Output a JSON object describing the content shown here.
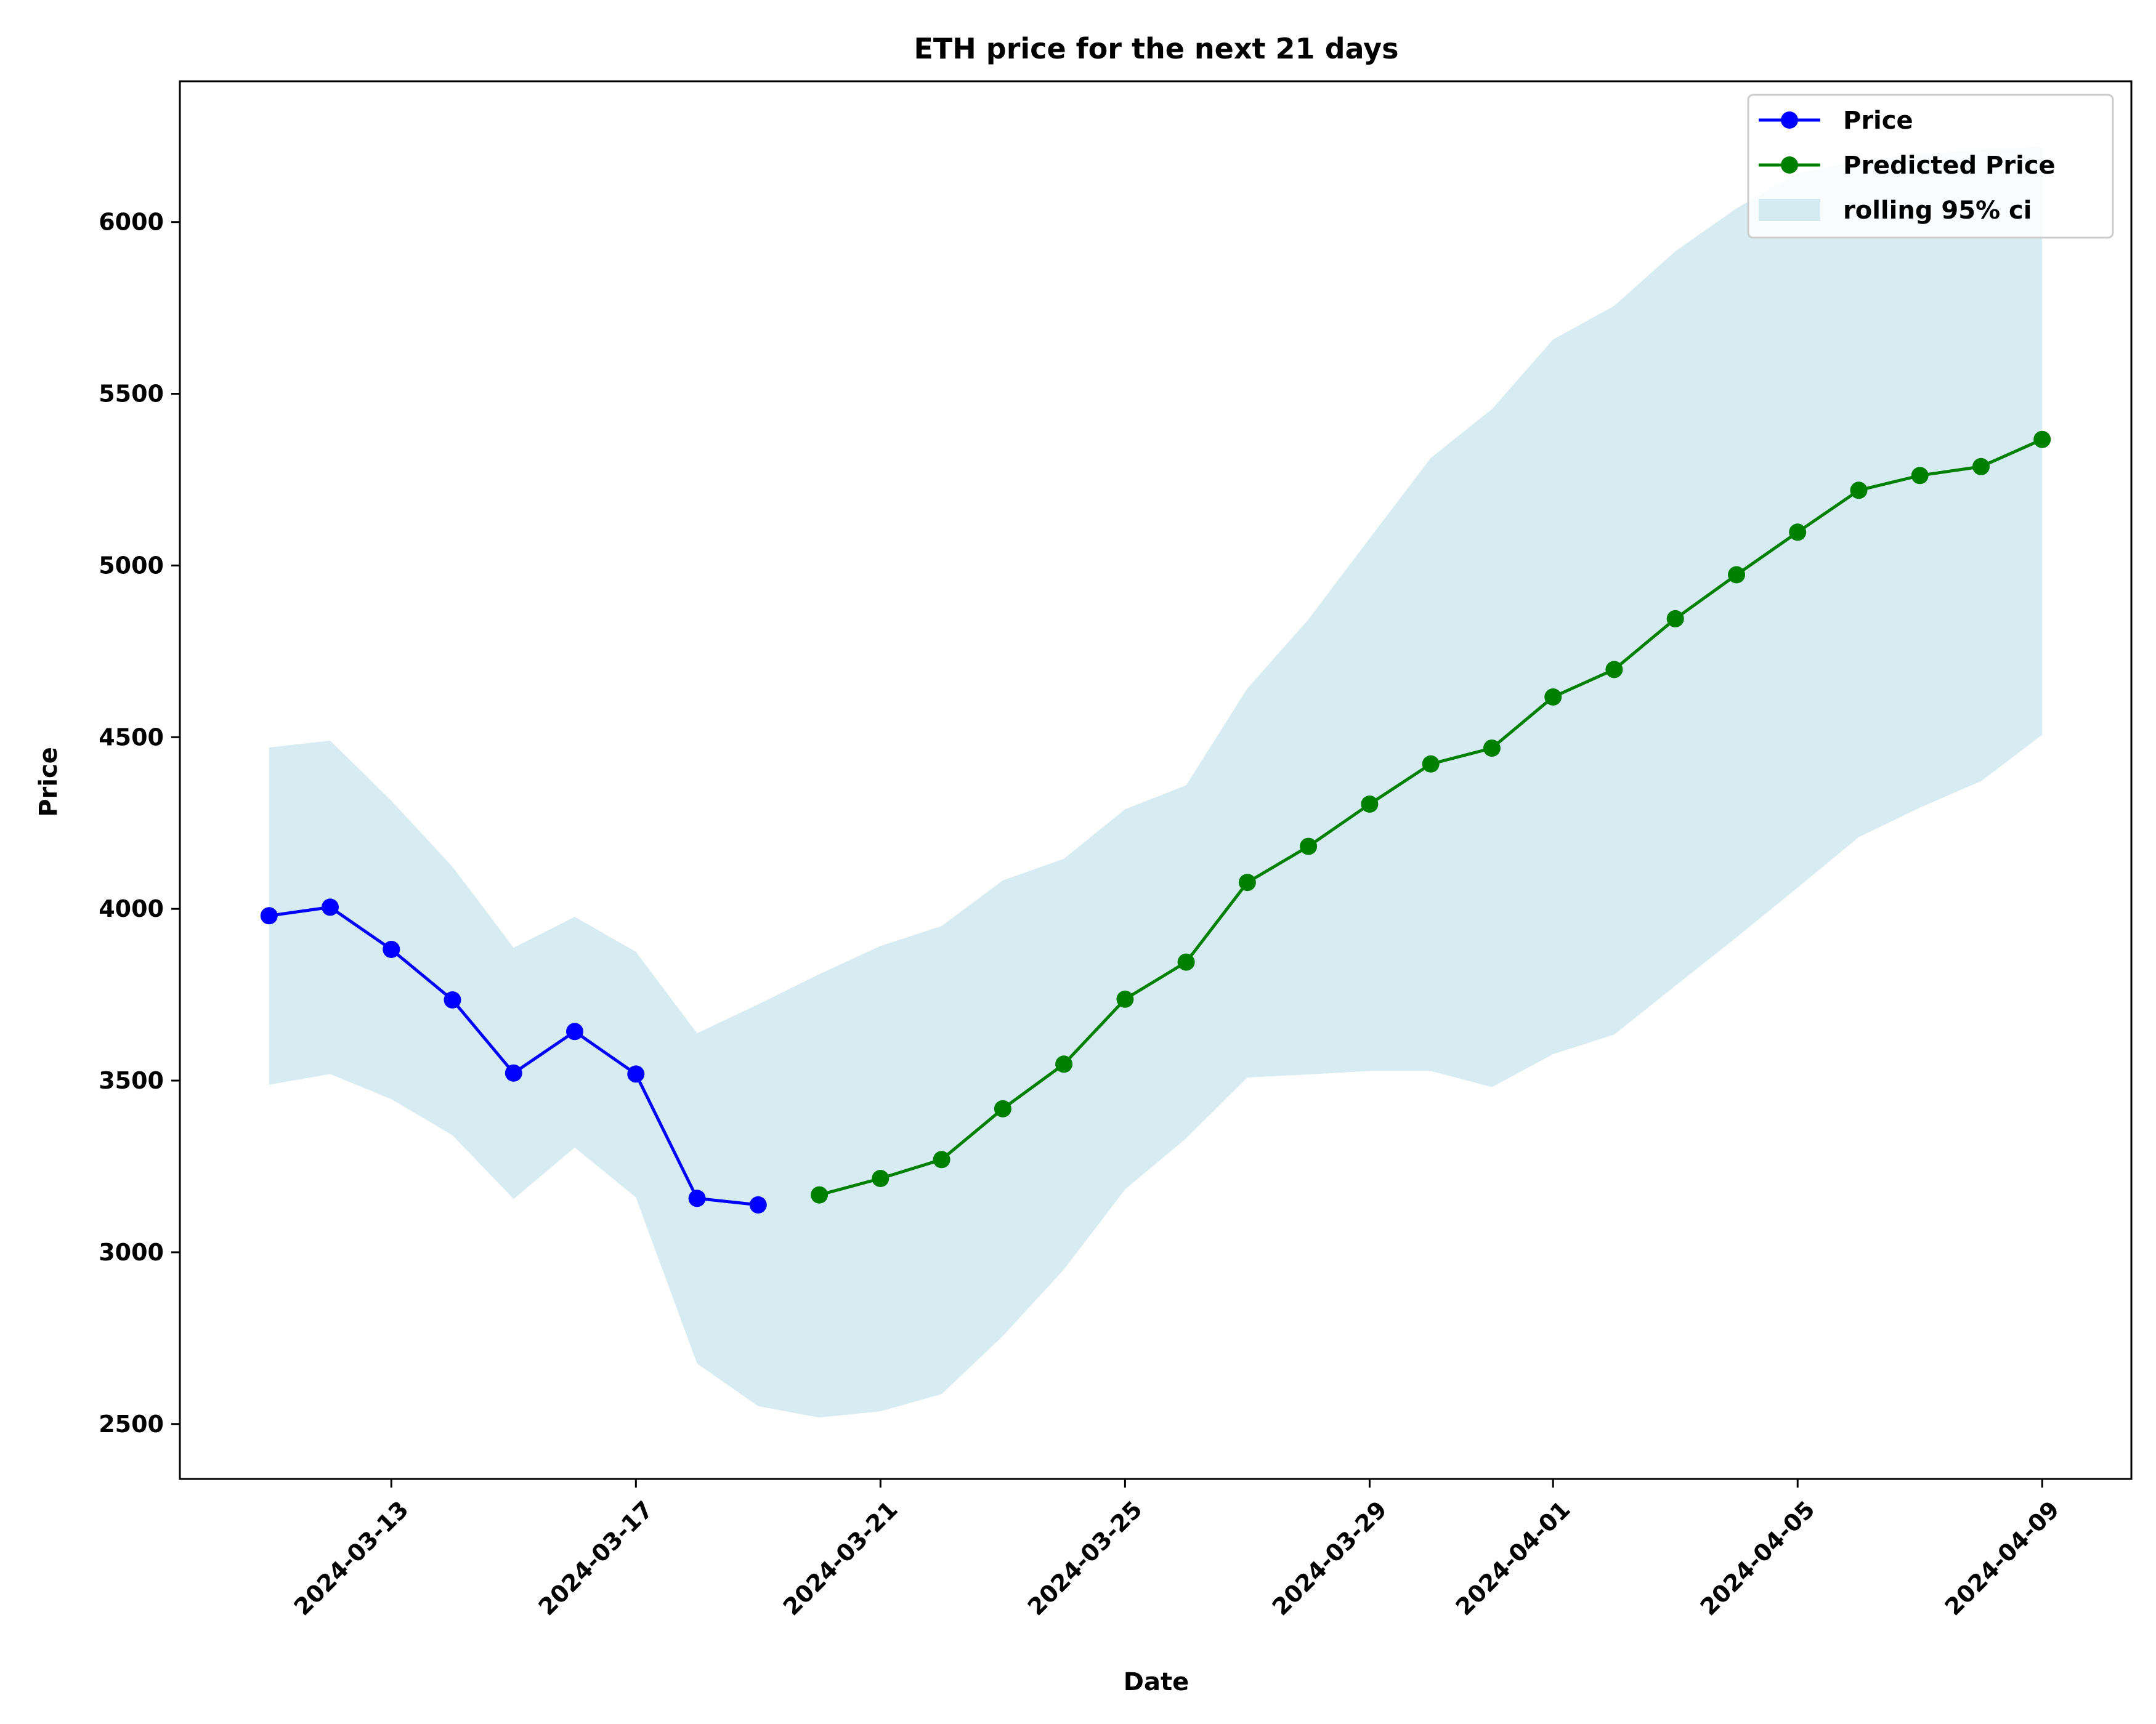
{
  "chart_data": {
    "type": "line",
    "title": "ETH price for the next 21 days",
    "xlabel": "Date",
    "ylabel": "Price",
    "xlim": [
      "2024-03-09T13:00",
      "2024-04-10T11:00"
    ],
    "ylim": [
      2340,
      6410
    ],
    "x_ticks": [
      "2024-03-13",
      "2024-03-17",
      "2024-03-21",
      "2024-03-25",
      "2024-03-29",
      "2024-04-01",
      "2024-04-05",
      "2024-04-09"
    ],
    "y_ticks": [
      2500,
      3000,
      3500,
      4000,
      4500,
      5000,
      5500,
      6000
    ],
    "grid": false,
    "legend_position": "top-right",
    "series": [
      {
        "name": "Price",
        "color": "#0000ff",
        "marker": "circle",
        "points": [
          {
            "x": "2024-03-11",
            "y": 3980
          },
          {
            "x": "2024-03-12",
            "y": 4005
          },
          {
            "x": "2024-03-13",
            "y": 3882
          },
          {
            "x": "2024-03-14",
            "y": 3735
          },
          {
            "x": "2024-03-15",
            "y": 3522
          },
          {
            "x": "2024-03-16",
            "y": 3643
          },
          {
            "x": "2024-03-17",
            "y": 3519
          },
          {
            "x": "2024-03-18",
            "y": 3157
          },
          {
            "x": "2024-03-19",
            "y": 3138
          }
        ]
      },
      {
        "name": "Predicted Price",
        "color": "#008000",
        "marker": "circle",
        "points": [
          {
            "x": "2024-03-20",
            "y": 3167
          },
          {
            "x": "2024-03-21",
            "y": 3215
          },
          {
            "x": "2024-03-22",
            "y": 3270
          },
          {
            "x": "2024-03-23",
            "y": 3418
          },
          {
            "x": "2024-03-24",
            "y": 3548
          },
          {
            "x": "2024-03-25",
            "y": 3737
          },
          {
            "x": "2024-03-26",
            "y": 3845
          },
          {
            "x": "2024-03-27",
            "y": 4077
          },
          {
            "x": "2024-03-28",
            "y": 4182
          },
          {
            "x": "2024-03-29",
            "y": 4305
          },
          {
            "x": "2024-03-30",
            "y": 4422
          },
          {
            "x": "2024-03-31",
            "y": 4468
          },
          {
            "x": "2024-04-01",
            "y": 4617
          },
          {
            "x": "2024-04-02",
            "y": 4697
          },
          {
            "x": "2024-04-03",
            "y": 4845
          },
          {
            "x": "2024-04-04",
            "y": 4973
          },
          {
            "x": "2024-04-05",
            "y": 5097
          },
          {
            "x": "2024-04-06",
            "y": 5219
          },
          {
            "x": "2024-04-07",
            "y": 5262
          },
          {
            "x": "2024-04-08",
            "y": 5288
          },
          {
            "x": "2024-04-09",
            "y": 5367
          }
        ]
      }
    ],
    "band": {
      "name": "rolling 95% ci",
      "color": "#add8e6",
      "opacity": 0.5,
      "points": [
        {
          "x": "2024-03-11",
          "lower": 3488,
          "upper": 4470
        },
        {
          "x": "2024-03-12",
          "lower": 3519,
          "upper": 4490
        },
        {
          "x": "2024-03-13",
          "lower": 3446,
          "upper": 4315
        },
        {
          "x": "2024-03-14",
          "lower": 3341,
          "upper": 4123
        },
        {
          "x": "2024-03-15",
          "lower": 3155,
          "upper": 3887
        },
        {
          "x": "2024-03-16",
          "lower": 3305,
          "upper": 3977
        },
        {
          "x": "2024-03-17",
          "lower": 3160,
          "upper": 3875
        },
        {
          "x": "2024-03-18",
          "lower": 2676,
          "upper": 3638
        },
        {
          "x": "2024-03-19",
          "lower": 2552,
          "upper": 3722
        },
        {
          "x": "2024-03-20",
          "lower": 2519,
          "upper": 3810
        },
        {
          "x": "2024-03-21",
          "lower": 2537,
          "upper": 3892
        },
        {
          "x": "2024-03-22",
          "lower": 2587,
          "upper": 3950
        },
        {
          "x": "2024-03-23",
          "lower": 2756,
          "upper": 4083
        },
        {
          "x": "2024-03-24",
          "lower": 2950,
          "upper": 4146
        },
        {
          "x": "2024-03-25",
          "lower": 3183,
          "upper": 4290
        },
        {
          "x": "2024-03-26",
          "lower": 3332,
          "upper": 4360
        },
        {
          "x": "2024-03-27",
          "lower": 3509,
          "upper": 4642
        },
        {
          "x": "2024-03-28",
          "lower": 3518,
          "upper": 4843
        },
        {
          "x": "2024-03-29",
          "lower": 3528,
          "upper": 5079
        },
        {
          "x": "2024-03-30",
          "lower": 3528,
          "upper": 5313
        },
        {
          "x": "2024-03-31",
          "lower": 3481,
          "upper": 5455
        },
        {
          "x": "2024-04-01",
          "lower": 3577,
          "upper": 5658
        },
        {
          "x": "2024-04-02",
          "lower": 3634,
          "upper": 5756
        },
        {
          "x": "2024-04-03",
          "lower": 3776,
          "upper": 5915
        },
        {
          "x": "2024-04-04",
          "lower": 3917,
          "upper": 6040
        },
        {
          "x": "2024-04-05",
          "lower": 4062,
          "upper": 6142
        },
        {
          "x": "2024-04-06",
          "lower": 4209,
          "upper": 6178
        },
        {
          "x": "2024-04-07",
          "lower": 4295,
          "upper": 6198
        },
        {
          "x": "2024-04-08",
          "lower": 4372,
          "upper": 6210
        },
        {
          "x": "2024-04-09",
          "lower": 4507,
          "upper": 6220
        }
      ]
    }
  }
}
